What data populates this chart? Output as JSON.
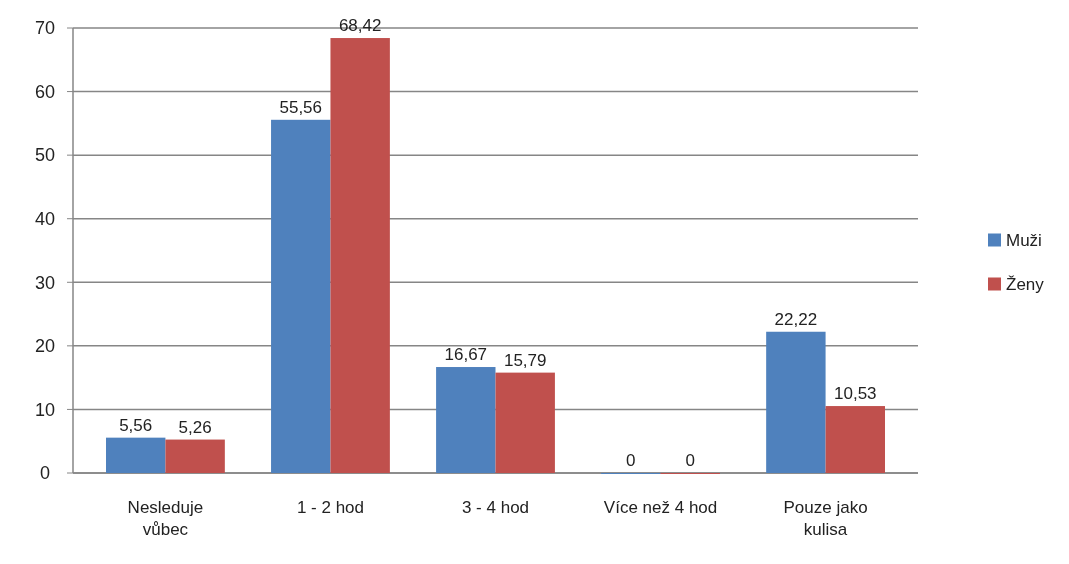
{
  "chart_data": {
    "type": "bar",
    "categories": [
      "Nesleduje vůbec",
      "1 - 2 hod",
      "3 - 4 hod",
      "Více než 4 hod",
      "Pouze jako kulisa"
    ],
    "series": [
      {
        "name": "Muži",
        "color": "#4f81bd",
        "values": [
          5.56,
          55.56,
          16.67,
          0,
          22.22
        ],
        "value_labels": [
          "5,56",
          "55,56",
          "16,67",
          "0",
          "22,22"
        ]
      },
      {
        "name": "Ženy",
        "color": "#c0504d",
        "values": [
          5.26,
          68.42,
          15.79,
          0,
          10.53
        ],
        "value_labels": [
          "5,26",
          "68,42",
          "15,79",
          "0",
          "10,53"
        ]
      }
    ],
    "ylim": [
      0,
      70
    ],
    "yticks": [
      0,
      10,
      20,
      30,
      40,
      50,
      60,
      70
    ],
    "grid": "y",
    "legend": "right"
  }
}
